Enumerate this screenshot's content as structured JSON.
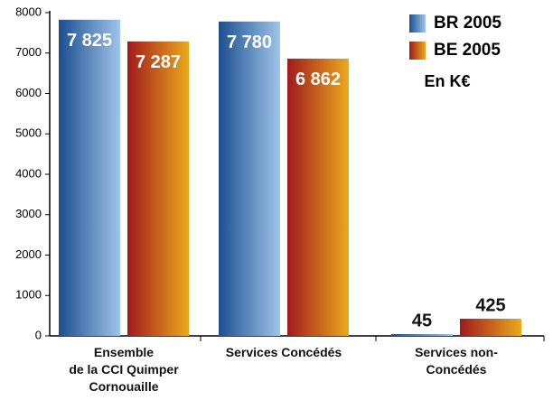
{
  "chart_data": {
    "type": "bar",
    "categories": [
      "Ensemble\nde la CCI Quimper\nCornouaille",
      "Services Concédés",
      "Services non-\nConcédés"
    ],
    "series": [
      {
        "name": "BR 2005",
        "color": "#1c4f91",
        "gradient": [
          "#1c4f91",
          "#9fc4e8"
        ],
        "values": [
          7825,
          7780,
          45
        ],
        "value_labels": [
          "7 825",
          "7 780",
          "45"
        ]
      },
      {
        "name": "BE 2005",
        "color": "#a11a1c",
        "gradient": [
          "#a11a1c",
          "#eba91c"
        ],
        "values": [
          7287,
          6862,
          425
        ],
        "value_labels": [
          "7 287",
          "6 862",
          "425"
        ]
      }
    ],
    "annotation": "En K€",
    "ylim": [
      0,
      8000
    ],
    "yticks": [
      0,
      1000,
      2000,
      3000,
      4000,
      5000,
      6000,
      7000,
      8000
    ],
    "legend": "top-right"
  }
}
